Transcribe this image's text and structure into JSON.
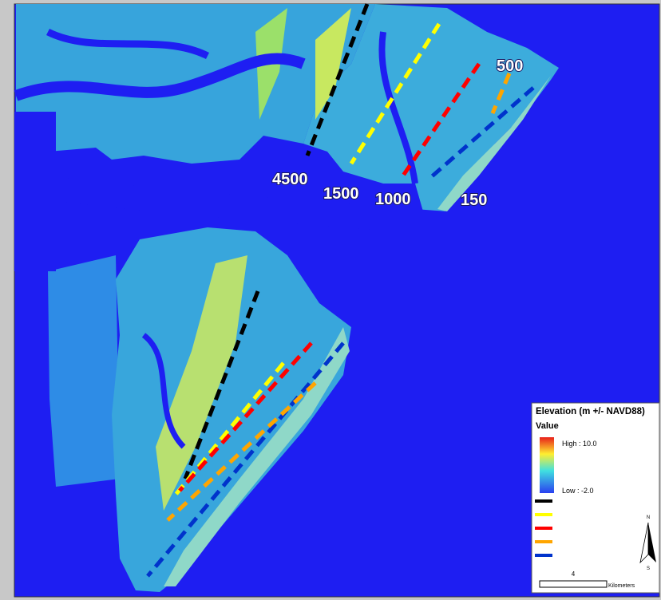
{
  "transects": [
    {
      "label": "4500",
      "color": "#000000"
    },
    {
      "label": "1500",
      "color": "#ffff00"
    },
    {
      "label": "1000",
      "color": "#ff0000"
    },
    {
      "label": "150",
      "color": "#0033cc"
    },
    {
      "label": "500",
      "color": "#ffa500"
    }
  ],
  "legend": {
    "title": "Elevation (m +/- NAVD88)",
    "subtitle": "Value",
    "high": "High : 10.0",
    "low": "Low : -2.0"
  },
  "scale_bar": {
    "distance": "4",
    "unit": "Kilometers"
  },
  "north_arrow": {
    "north": "N",
    "south": "S"
  }
}
